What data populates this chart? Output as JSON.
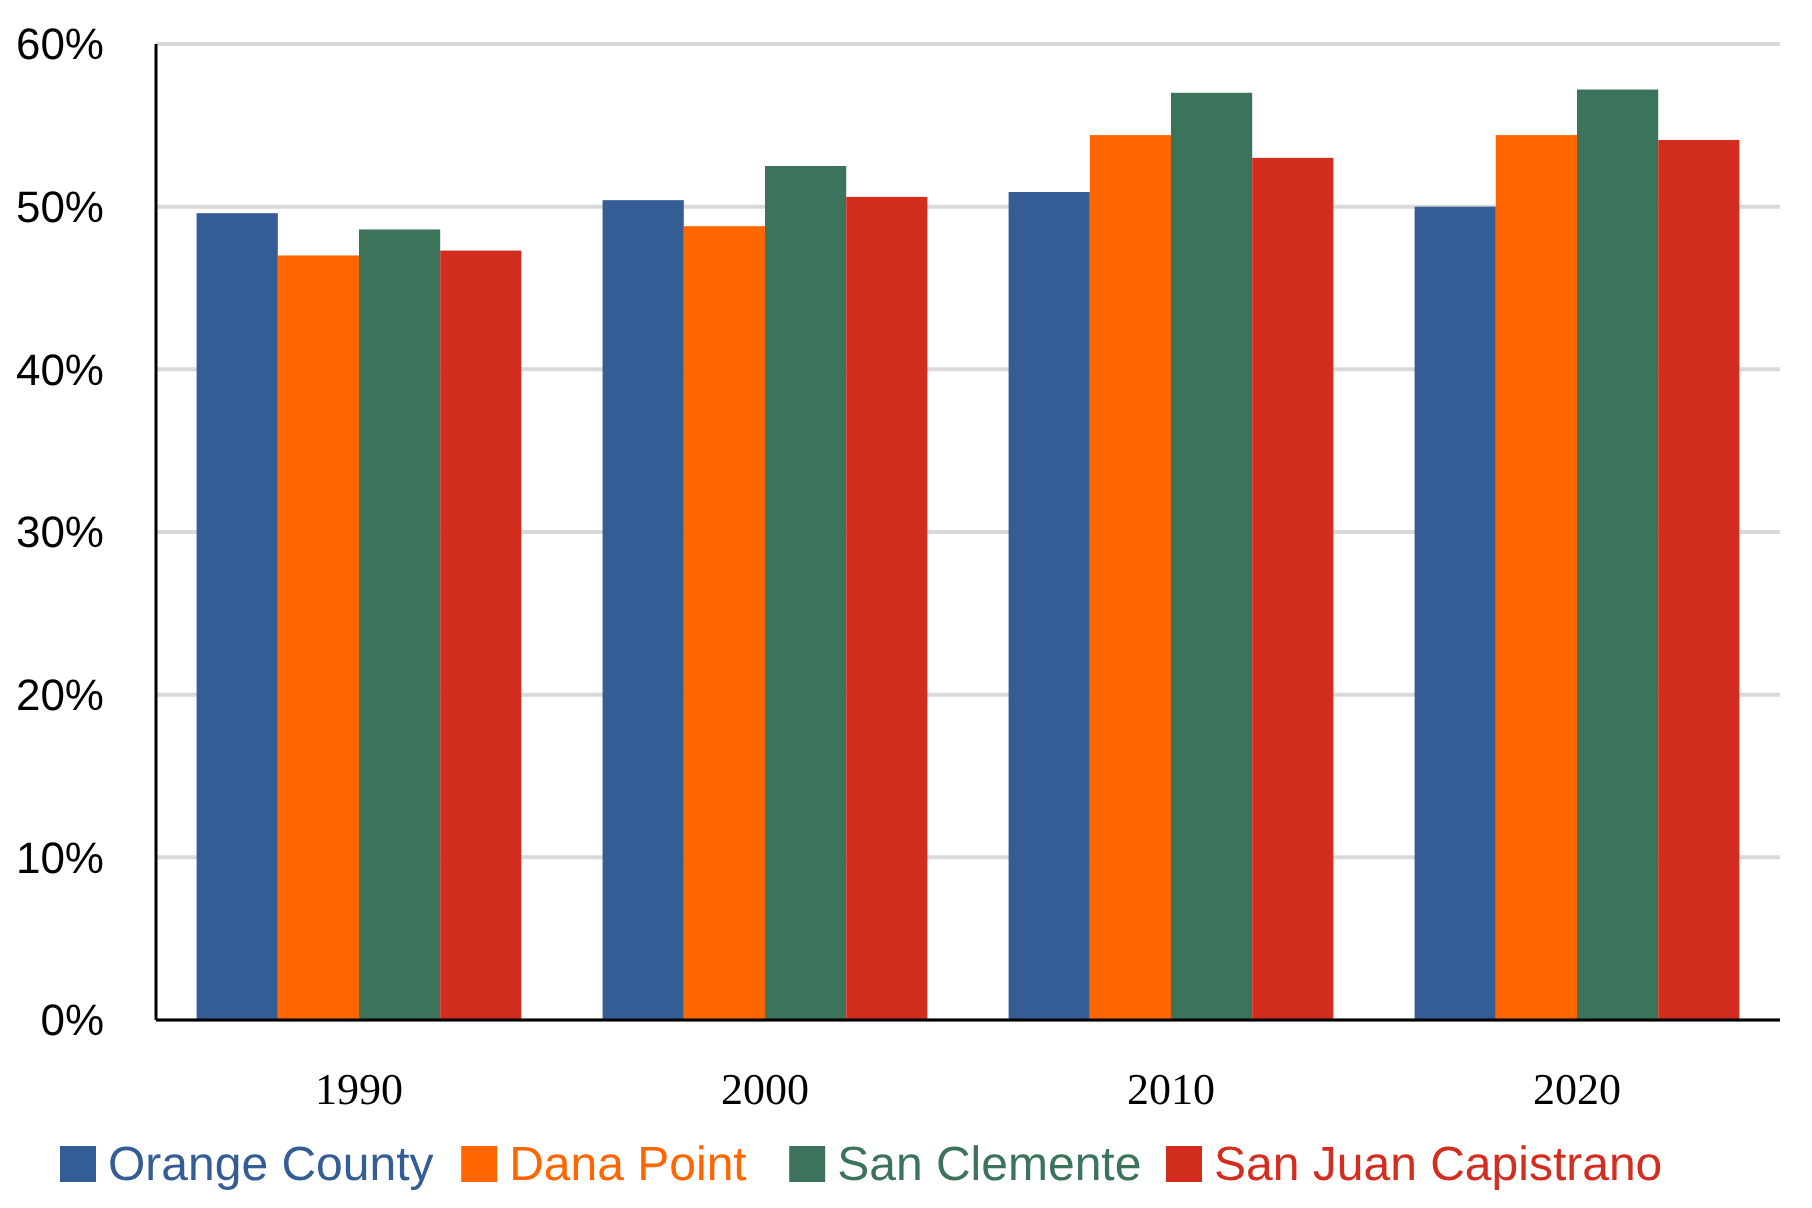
{
  "chart_data": {
    "type": "bar",
    "categories": [
      "1990",
      "2000",
      "2010",
      "2020"
    ],
    "series": [
      {
        "name": "Orange County",
        "color": "#345d96",
        "values": [
          49.6,
          50.4,
          50.9,
          50.0
        ]
      },
      {
        "name": "Dana Point",
        "color": "#ff6600",
        "values": [
          47.0,
          48.8,
          54.4,
          54.4
        ]
      },
      {
        "name": "San Clemente",
        "color": "#3c745b",
        "values": [
          48.6,
          52.5,
          57.0,
          57.2
        ]
      },
      {
        "name": "San Juan Capistrano",
        "color": "#d22d1e",
        "values": [
          47.3,
          50.6,
          53.0,
          54.1
        ]
      }
    ],
    "ylim": [
      0,
      60
    ],
    "yticks": [
      {
        "value": 0,
        "label": "0%"
      },
      {
        "value": 10,
        "label": "10%"
      },
      {
        "value": 20,
        "label": "20%"
      },
      {
        "value": 30,
        "label": "30%"
      },
      {
        "value": 40,
        "label": "40%"
      },
      {
        "value": 50,
        "label": "50%"
      },
      {
        "value": 60,
        "label": "60%"
      }
    ],
    "grid": "y",
    "legend": "bottom"
  }
}
